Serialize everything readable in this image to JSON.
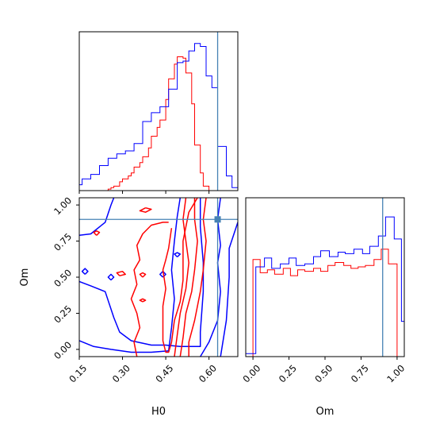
{
  "chart_data": {
    "type": "corner",
    "parameters": [
      "H0",
      "Om"
    ],
    "truth": {
      "H0": 0.63,
      "Om": 0.9
    },
    "colors": {
      "series_a": "#0000ff",
      "series_b": "#ff0000",
      "truth": "#4682b4",
      "axes": "#000000"
    },
    "panels": {
      "hist_H0": {
        "x_range": [
          0.15,
          0.7
        ],
        "x_ticks": [
          0.15,
          0.3,
          0.45,
          0.6
        ],
        "x_ticklabels_visible": false,
        "y_ticks_visible": false,
        "series_a_steps": [
          [
            0.1,
            0.01
          ],
          [
            0.12,
            0.02
          ],
          [
            0.14,
            0.04
          ],
          [
            0.16,
            0.08
          ],
          [
            0.19,
            0.11
          ],
          [
            0.22,
            0.17
          ],
          [
            0.25,
            0.22
          ],
          [
            0.28,
            0.25
          ],
          [
            0.31,
            0.27
          ],
          [
            0.34,
            0.32
          ],
          [
            0.37,
            0.47
          ],
          [
            0.4,
            0.53
          ],
          [
            0.43,
            0.57
          ],
          [
            0.46,
            0.69
          ],
          [
            0.49,
            0.87
          ],
          [
            0.51,
            0.88
          ],
          [
            0.53,
            0.95
          ],
          [
            0.55,
            1.0
          ],
          [
            0.57,
            0.98
          ],
          [
            0.59,
            0.78
          ],
          [
            0.61,
            0.7
          ],
          [
            0.63,
            0.3
          ],
          [
            0.66,
            0.1
          ],
          [
            0.68,
            0.02
          ],
          [
            0.7,
            0.02
          ]
        ],
        "series_b_steps": [
          [
            0.25,
            0.01
          ],
          [
            0.26,
            0.02
          ],
          [
            0.27,
            0.03
          ],
          [
            0.29,
            0.06
          ],
          [
            0.3,
            0.08
          ],
          [
            0.32,
            0.1
          ],
          [
            0.33,
            0.12
          ],
          [
            0.34,
            0.16
          ],
          [
            0.36,
            0.19
          ],
          [
            0.37,
            0.23
          ],
          [
            0.39,
            0.29
          ],
          [
            0.4,
            0.37
          ],
          [
            0.42,
            0.43
          ],
          [
            0.43,
            0.48
          ],
          [
            0.45,
            0.62
          ],
          [
            0.46,
            0.76
          ],
          [
            0.48,
            0.86
          ],
          [
            0.49,
            0.91
          ],
          [
            0.51,
            0.9
          ],
          [
            0.52,
            0.8
          ],
          [
            0.54,
            0.59
          ],
          [
            0.55,
            0.31
          ],
          [
            0.57,
            0.12
          ],
          [
            0.58,
            0.03
          ],
          [
            0.6,
            0.0
          ]
        ]
      },
      "joint": {
        "x_range": [
          0.15,
          0.7
        ],
        "y_range": [
          -0.05,
          1.05
        ],
        "x_ticks": [
          0.15,
          0.3,
          0.45,
          0.6
        ],
        "x_ticklabels": [
          "0.15",
          "0.30",
          "0.45",
          "0.60"
        ],
        "y_ticks": [
          0.0,
          0.25,
          0.5,
          0.75,
          1.0
        ],
        "y_ticklabels": [
          "0.00",
          "0.25",
          "0.50",
          "0.75",
          "1.00"
        ],
        "xlabel": "H0",
        "ylabel": "Om",
        "series_a_contours": [
          [
            [
              0.15,
              0.06
            ],
            [
              0.2,
              0.02
            ],
            [
              0.26,
              0.0
            ],
            [
              0.33,
              -0.02
            ],
            [
              0.4,
              -0.02
            ],
            [
              0.46,
              -0.01
            ],
            [
              0.47,
              0.15
            ],
            [
              0.48,
              0.35
            ],
            [
              0.47,
              0.55
            ],
            [
              0.48,
              0.75
            ],
            [
              0.49,
              0.92
            ],
            [
              0.5,
              1.05
            ]
          ],
          [
            [
              0.15,
              0.47
            ],
            [
              0.19,
              0.44
            ],
            [
              0.24,
              0.4
            ],
            [
              0.27,
              0.22
            ],
            [
              0.29,
              0.12
            ],
            [
              0.33,
              0.06
            ],
            [
              0.4,
              0.03
            ],
            [
              0.45,
              0.03
            ],
            [
              0.5,
              0.02
            ],
            [
              0.57,
              0.02
            ],
            [
              0.57,
              0.12
            ],
            [
              0.58,
              0.4
            ],
            [
              0.58,
              0.6
            ],
            [
              0.57,
              0.85
            ],
            [
              0.57,
              1.05
            ]
          ],
          [
            [
              0.15,
              0.79
            ],
            [
              0.19,
              0.8
            ],
            [
              0.24,
              0.88
            ],
            [
              0.26,
              1.0
            ],
            [
              0.27,
              1.05
            ]
          ],
          [
            [
              0.57,
              -0.05
            ],
            [
              0.6,
              0.05
            ],
            [
              0.63,
              0.2
            ],
            [
              0.64,
              0.4
            ],
            [
              0.63,
              0.6
            ],
            [
              0.64,
              0.72
            ],
            [
              0.63,
              0.9
            ],
            [
              0.64,
              1.05
            ]
          ],
          [
            [
              0.64,
              -0.05
            ],
            [
              0.66,
              0.2
            ],
            [
              0.67,
              0.5
            ],
            [
              0.67,
              0.7
            ],
            [
              0.7,
              0.88
            ]
          ],
          [
            [
              0.17,
              0.52
            ],
            [
              0.18,
              0.54
            ],
            [
              0.17,
              0.56
            ],
            [
              0.16,
              0.54
            ],
            [
              0.17,
              0.52
            ]
          ],
          [
            [
              0.26,
              0.48
            ],
            [
              0.27,
              0.5
            ],
            [
              0.26,
              0.52
            ],
            [
              0.25,
              0.5
            ],
            [
              0.26,
              0.48
            ]
          ],
          [
            [
              0.44,
              0.5
            ],
            [
              0.45,
              0.52
            ],
            [
              0.44,
              0.54
            ],
            [
              0.43,
              0.52
            ],
            [
              0.44,
              0.5
            ]
          ],
          [
            [
              0.49,
              0.64
            ],
            [
              0.5,
              0.66
            ],
            [
              0.49,
              0.67
            ],
            [
              0.48,
              0.66
            ],
            [
              0.49,
              0.64
            ]
          ]
        ],
        "series_b_contours": [
          [
            [
              0.38,
              0.98
            ],
            [
              0.4,
              0.97
            ],
            [
              0.38,
              0.95
            ],
            [
              0.36,
              0.96
            ],
            [
              0.38,
              0.98
            ]
          ],
          [
            [
              0.47,
              0.84
            ],
            [
              0.46,
              0.7
            ],
            [
              0.45,
              0.62
            ],
            [
              0.44,
              0.55
            ],
            [
              0.45,
              0.42
            ],
            [
              0.44,
              0.3
            ],
            [
              0.44,
              0.18
            ],
            [
              0.44,
              0.06
            ],
            [
              0.45,
              -0.02
            ],
            [
              0.46,
              -0.02
            ],
            [
              0.47,
              0.05
            ],
            [
              0.48,
              0.2
            ],
            [
              0.5,
              0.33
            ],
            [
              0.51,
              0.48
            ],
            [
              0.51,
              0.62
            ],
            [
              0.51,
              0.75
            ],
            [
              0.53,
              0.95
            ],
            [
              0.56,
              1.05
            ]
          ],
          [
            [
              0.52,
              1.05
            ],
            [
              0.51,
              0.9
            ],
            [
              0.52,
              0.75
            ],
            [
              0.53,
              0.6
            ],
            [
              0.52,
              0.42
            ],
            [
              0.5,
              0.25
            ],
            [
              0.49,
              0.1
            ],
            [
              0.48,
              -0.05
            ]
          ],
          [
            [
              0.55,
              1.05
            ],
            [
              0.55,
              0.9
            ],
            [
              0.56,
              0.75
            ],
            [
              0.55,
              0.55
            ],
            [
              0.54,
              0.4
            ],
            [
              0.52,
              0.25
            ],
            [
              0.51,
              0.08
            ],
            [
              0.5,
              -0.05
            ]
          ],
          [
            [
              0.59,
              1.05
            ],
            [
              0.58,
              0.9
            ],
            [
              0.59,
              0.75
            ],
            [
              0.58,
              0.55
            ],
            [
              0.57,
              0.4
            ],
            [
              0.55,
              0.2
            ],
            [
              0.53,
              0.05
            ],
            [
              0.53,
              -0.05
            ]
          ],
          [
            [
              0.35,
              -0.05
            ],
            [
              0.34,
              0.05
            ],
            [
              0.36,
              0.15
            ],
            [
              0.35,
              0.25
            ],
            [
              0.33,
              0.35
            ],
            [
              0.35,
              0.45
            ],
            [
              0.34,
              0.55
            ],
            [
              0.36,
              0.62
            ],
            [
              0.35,
              0.72
            ],
            [
              0.37,
              0.8
            ],
            [
              0.4,
              0.86
            ],
            [
              0.44,
              0.88
            ],
            [
              0.46,
              0.88
            ]
          ],
          [
            [
              0.29,
              0.51
            ],
            [
              0.31,
              0.52
            ],
            [
              0.3,
              0.54
            ],
            [
              0.28,
              0.53
            ],
            [
              0.29,
              0.51
            ]
          ],
          [
            [
              0.37,
              0.33
            ],
            [
              0.38,
              0.34
            ],
            [
              0.37,
              0.35
            ],
            [
              0.36,
              0.34
            ],
            [
              0.37,
              0.33
            ]
          ],
          [
            [
              0.37,
              0.5
            ],
            [
              0.38,
              0.52
            ],
            [
              0.37,
              0.53
            ],
            [
              0.36,
              0.52
            ],
            [
              0.37,
              0.5
            ]
          ],
          [
            [
              0.21,
              0.79
            ],
            [
              0.22,
              0.81
            ],
            [
              0.21,
              0.82
            ],
            [
              0.2,
              0.81
            ],
            [
              0.21,
              0.79
            ]
          ]
        ]
      },
      "hist_Om": {
        "x_range": [
          -0.05,
          1.05
        ],
        "x_ticks": [
          0.0,
          0.25,
          0.5,
          0.75,
          1.0
        ],
        "x_ticklabels": [
          "0.00",
          "0.25",
          "0.50",
          "0.75",
          "1.00"
        ],
        "xlabel": "Om",
        "y_ticks_visible": false,
        "series_a_steps": [
          [
            -0.07,
            0.02
          ],
          [
            0.02,
            0.61
          ],
          [
            0.08,
            0.67
          ],
          [
            0.13,
            0.6
          ],
          [
            0.19,
            0.63
          ],
          [
            0.25,
            0.67
          ],
          [
            0.3,
            0.62
          ],
          [
            0.36,
            0.63
          ],
          [
            0.42,
            0.68
          ],
          [
            0.47,
            0.72
          ],
          [
            0.53,
            0.68
          ],
          [
            0.59,
            0.71
          ],
          [
            0.64,
            0.7
          ],
          [
            0.7,
            0.73
          ],
          [
            0.76,
            0.7
          ],
          [
            0.81,
            0.75
          ],
          [
            0.87,
            0.82
          ],
          [
            0.92,
            0.95
          ],
          [
            0.98,
            0.8
          ],
          [
            1.03,
            0.24
          ]
        ],
        "series_b_steps": [
          [
            0.0,
            0.66
          ],
          [
            0.05,
            0.57
          ],
          [
            0.1,
            0.59
          ],
          [
            0.15,
            0.56
          ],
          [
            0.21,
            0.6
          ],
          [
            0.26,
            0.55
          ],
          [
            0.31,
            0.59
          ],
          [
            0.36,
            0.58
          ],
          [
            0.42,
            0.6
          ],
          [
            0.47,
            0.58
          ],
          [
            0.52,
            0.62
          ],
          [
            0.57,
            0.64
          ],
          [
            0.63,
            0.62
          ],
          [
            0.68,
            0.6
          ],
          [
            0.73,
            0.61
          ],
          [
            0.78,
            0.62
          ],
          [
            0.84,
            0.66
          ],
          [
            0.89,
            0.73
          ],
          [
            0.94,
            0.63
          ],
          [
            1.0,
            0.0
          ]
        ]
      }
    }
  }
}
